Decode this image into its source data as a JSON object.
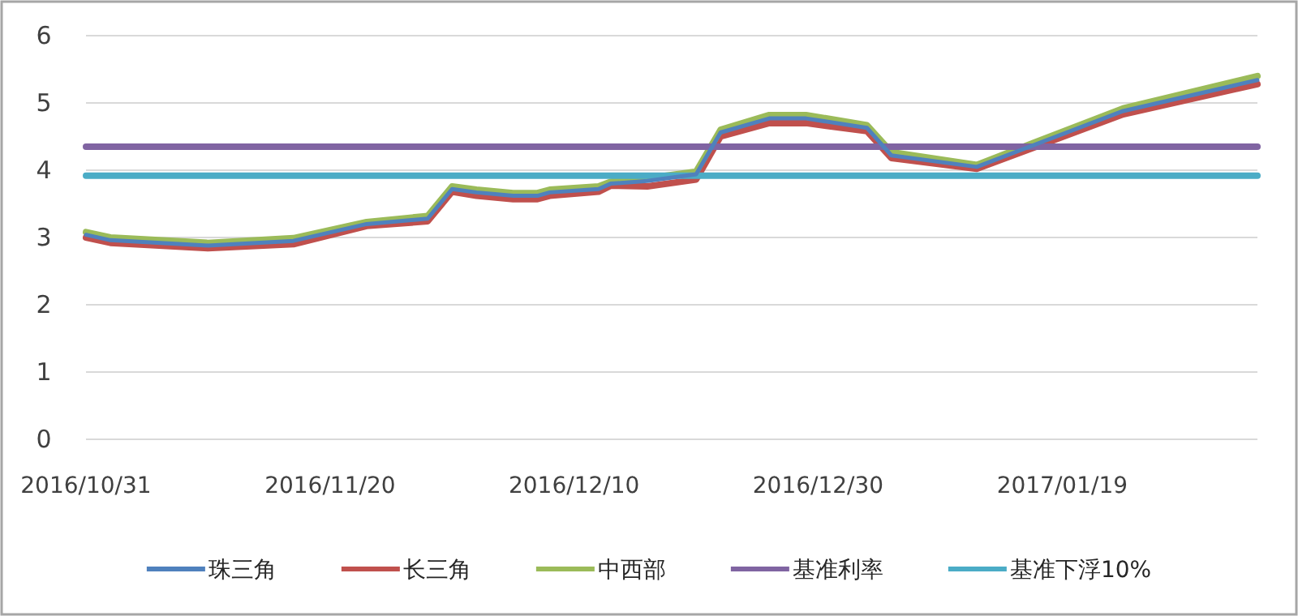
{
  "chart_data": {
    "type": "line",
    "x": [
      "2016-10-31",
      "2016-11-02",
      "2016-11-10",
      "2016-11-17",
      "2016-11-23",
      "2016-11-28",
      "2016-11-30",
      "2016-12-02",
      "2016-12-05",
      "2016-12-07",
      "2016-12-08",
      "2016-12-12",
      "2016-12-13",
      "2016-12-16",
      "2016-12-20",
      "2016-12-22",
      "2016-12-26",
      "2016-12-29",
      "2017-01-03",
      "2017-01-05",
      "2017-01-12",
      "2017-01-24",
      "2017-02-04"
    ],
    "series": [
      {
        "name": "珠三角",
        "color": "#4f81bd",
        "values": [
          3.04,
          2.96,
          2.88,
          2.95,
          3.2,
          3.28,
          3.72,
          3.67,
          3.62,
          3.62,
          3.67,
          3.72,
          3.8,
          3.84,
          3.94,
          4.56,
          4.77,
          4.77,
          4.63,
          4.22,
          4.05,
          4.88,
          5.34
        ]
      },
      {
        "name": "长三角",
        "color": "#c0504d",
        "values": [
          3.0,
          2.92,
          2.84,
          2.9,
          3.17,
          3.24,
          3.68,
          3.62,
          3.57,
          3.57,
          3.62,
          3.68,
          3.77,
          3.76,
          3.86,
          4.5,
          4.7,
          4.7,
          4.58,
          4.18,
          4.02,
          4.83,
          5.28
        ]
      },
      {
        "name": "中西部",
        "color": "#9bbb59",
        "values": [
          3.08,
          3.0,
          2.92,
          2.99,
          3.23,
          3.32,
          3.76,
          3.71,
          3.66,
          3.66,
          3.71,
          3.76,
          3.83,
          3.88,
          3.98,
          4.6,
          4.82,
          4.82,
          4.67,
          4.27,
          4.08,
          4.92,
          5.4
        ]
      },
      {
        "name": "基准利率",
        "color": "#8064a2",
        "x": [
          "2016-10-31",
          "2017-02-04"
        ],
        "values": [
          4.35,
          4.35
        ]
      },
      {
        "name": "基准下浮10%",
        "color": "#4bacc6",
        "x": [
          "2016-10-31",
          "2017-02-04"
        ],
        "values": [
          3.92,
          3.92
        ]
      }
    ],
    "xlim": [
      "2016-10-31",
      "2017-02-04"
    ],
    "xticks": [
      {
        "value": "2016-10-31",
        "label": "2016/10/31"
      },
      {
        "value": "2016-11-20",
        "label": "2016/11/20"
      },
      {
        "value": "2016-12-10",
        "label": "2016/12/10"
      },
      {
        "value": "2016-12-30",
        "label": "2016/12/30"
      },
      {
        "value": "2017-01-19",
        "label": "2017/01/19"
      }
    ],
    "ylim": [
      0,
      6
    ],
    "yticks": [
      0,
      1,
      2,
      3,
      4,
      5,
      6
    ],
    "grid": "y",
    "legend": "bottom",
    "line_style": "solid"
  }
}
